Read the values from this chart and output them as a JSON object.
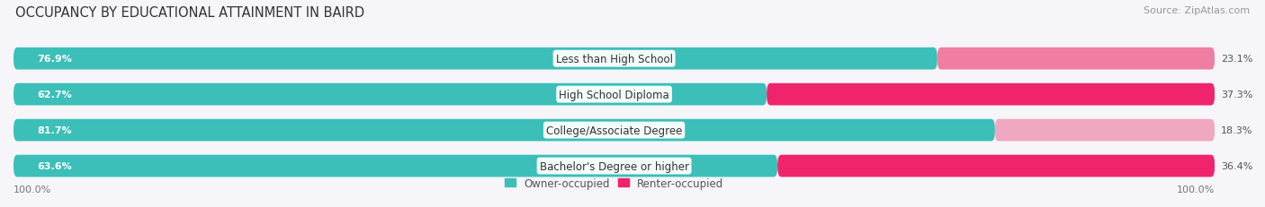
{
  "title": "OCCUPANCY BY EDUCATIONAL ATTAINMENT IN BAIRD",
  "source": "Source: ZipAtlas.com",
  "categories": [
    "Less than High School",
    "High School Diploma",
    "College/Associate Degree",
    "Bachelor's Degree or higher"
  ],
  "owner_pct": [
    76.9,
    62.7,
    81.7,
    63.6
  ],
  "renter_pct": [
    23.1,
    37.3,
    18.3,
    36.4
  ],
  "owner_color": "#3BBFB8",
  "renter_color_dark": [
    "#F07EA0",
    "#F0246C",
    "#F0A8C0",
    "#F0246C"
  ],
  "renter_color_light": [
    "#F5B8CC",
    "#F07EA0",
    "#F5C8D8",
    "#F07EA0"
  ],
  "owner_label": "Owner-occupied",
  "renter_label": "Renter-occupied",
  "bar_bg_color": "#EBEBF0",
  "title_fontsize": 10.5,
  "source_fontsize": 8,
  "label_fontsize": 8.5,
  "value_fontsize": 8,
  "background_color": "#F5F5FA",
  "bar_height": 0.62
}
